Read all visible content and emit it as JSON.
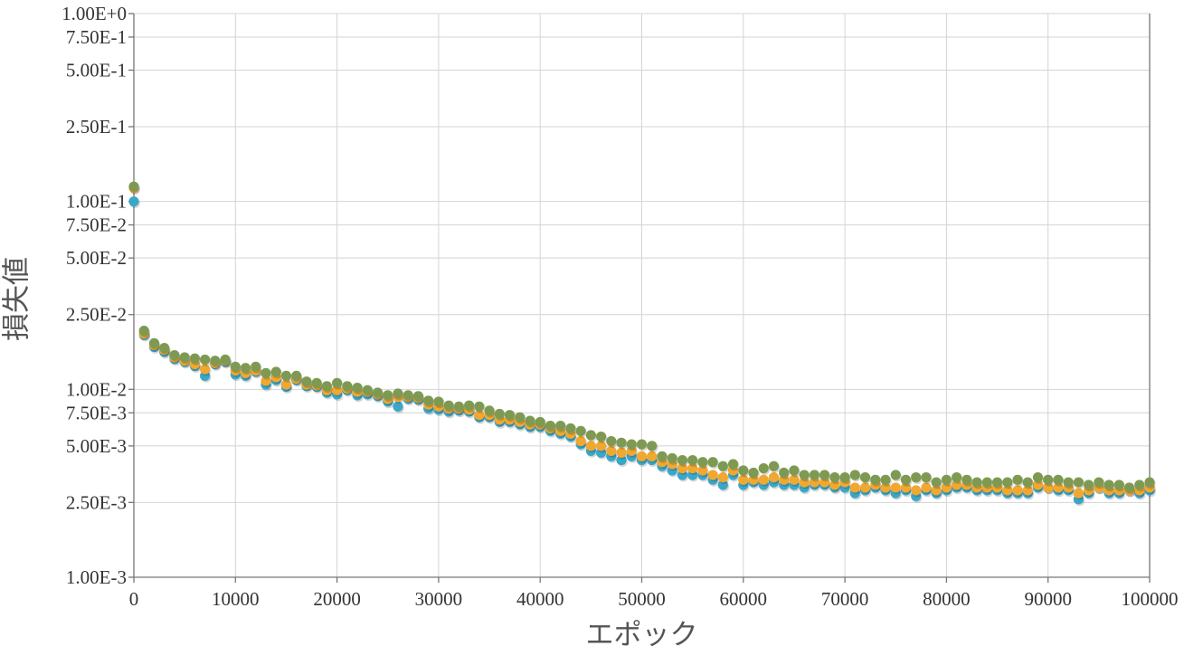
{
  "chart_data": {
    "type": "scatter",
    "title": "",
    "xlabel": "エポック",
    "ylabel": "損失値",
    "xlim": [
      0,
      100000
    ],
    "ylim": [
      0.001,
      1
    ],
    "yscale": "log",
    "grid": true,
    "legend": "none",
    "x_ticks": [
      "0",
      "10000",
      "20000",
      "30000",
      "40000",
      "50000",
      "60000",
      "70000",
      "80000",
      "90000",
      "100000"
    ],
    "y_ticks": [
      {
        "value": 1.0,
        "label": "1.00E+0"
      },
      {
        "value": 0.75,
        "label": "7.50E-1"
      },
      {
        "value": 0.5,
        "label": "5.00E-1"
      },
      {
        "value": 0.25,
        "label": "2.50E-1"
      },
      {
        "value": 0.1,
        "label": "1.00E-1"
      },
      {
        "value": 0.075,
        "label": "7.50E-2"
      },
      {
        "value": 0.05,
        "label": "5.00E-2"
      },
      {
        "value": 0.025,
        "label": "2.50E-2"
      },
      {
        "value": 0.01,
        "label": "1.00E-2"
      },
      {
        "value": 0.0075,
        "label": "7.50E-3"
      },
      {
        "value": 0.005,
        "label": "5.00E-3"
      },
      {
        "value": 0.0025,
        "label": "2.50E-3"
      },
      {
        "value": 0.001,
        "label": "1.00E-3"
      }
    ],
    "x": [
      0,
      1000,
      2000,
      3000,
      4000,
      5000,
      6000,
      7000,
      8000,
      9000,
      10000,
      11000,
      12000,
      13000,
      14000,
      15000,
      16000,
      17000,
      18000,
      19000,
      20000,
      21000,
      22000,
      23000,
      24000,
      25000,
      26000,
      27000,
      28000,
      29000,
      30000,
      31000,
      32000,
      33000,
      34000,
      35000,
      36000,
      37000,
      38000,
      39000,
      40000,
      41000,
      42000,
      43000,
      44000,
      45000,
      46000,
      47000,
      48000,
      49000,
      50000,
      51000,
      52000,
      53000,
      54000,
      55000,
      56000,
      57000,
      58000,
      59000,
      60000,
      61000,
      62000,
      63000,
      64000,
      65000,
      66000,
      67000,
      68000,
      69000,
      70000,
      71000,
      72000,
      73000,
      74000,
      75000,
      76000,
      77000,
      78000,
      79000,
      80000,
      81000,
      82000,
      83000,
      84000,
      85000,
      86000,
      87000,
      88000,
      89000,
      90000,
      91000,
      92000,
      93000,
      94000,
      95000,
      96000,
      97000,
      98000,
      99000,
      100000
    ],
    "series": [
      {
        "color": "#3aa7c9",
        "values": [
          0.1,
          0.0195,
          0.0168,
          0.0158,
          0.0145,
          0.014,
          0.0133,
          0.0118,
          0.0136,
          0.014,
          0.012,
          0.0118,
          0.0124,
          0.0106,
          0.0112,
          0.0103,
          0.0112,
          0.0104,
          0.0103,
          0.0096,
          0.0094,
          0.0099,
          0.0093,
          0.0094,
          0.0092,
          0.0086,
          0.0081,
          0.0089,
          0.0088,
          0.0079,
          0.0078,
          0.0076,
          0.0077,
          0.0076,
          0.0071,
          0.0071,
          0.0067,
          0.0067,
          0.0065,
          0.0063,
          0.0063,
          0.006,
          0.0058,
          0.0056,
          0.0051,
          0.0047,
          0.0046,
          0.0044,
          0.0042,
          0.0044,
          0.0042,
          0.0042,
          0.0039,
          0.0037,
          0.0035,
          0.0035,
          0.0035,
          0.0033,
          0.0031,
          0.0035,
          0.0031,
          0.0032,
          0.0031,
          0.0032,
          0.0031,
          0.0031,
          0.003,
          0.0031,
          0.0031,
          0.003,
          0.003,
          0.0028,
          0.0029,
          0.003,
          0.0029,
          0.0028,
          0.0029,
          0.0027,
          0.0029,
          0.0028,
          0.0029,
          0.003,
          0.003,
          0.0029,
          0.0029,
          0.0029,
          0.0028,
          0.0028,
          0.0028,
          0.003,
          0.003,
          0.0029,
          0.0029,
          0.0026,
          0.0028,
          0.003,
          0.0028,
          0.0028,
          0.0029,
          0.0028,
          0.0029
        ]
      },
      {
        "color": "#f0a830",
        "values": [
          0.118,
          0.0198,
          0.0172,
          0.0162,
          0.0148,
          0.0142,
          0.0136,
          0.0128,
          0.0138,
          0.0142,
          0.0126,
          0.0122,
          0.0126,
          0.0111,
          0.0116,
          0.0106,
          0.0114,
          0.0106,
          0.0105,
          0.0099,
          0.0099,
          0.0101,
          0.0097,
          0.0097,
          0.0094,
          0.0089,
          0.0091,
          0.0091,
          0.009,
          0.0083,
          0.0081,
          0.0079,
          0.0079,
          0.0078,
          0.0073,
          0.0073,
          0.0069,
          0.0069,
          0.0067,
          0.0065,
          0.0065,
          0.0062,
          0.006,
          0.0058,
          0.0053,
          0.005,
          0.005,
          0.0047,
          0.0046,
          0.0047,
          0.0044,
          0.0044,
          0.0041,
          0.004,
          0.0038,
          0.0038,
          0.0037,
          0.0035,
          0.0034,
          0.0037,
          0.0033,
          0.0033,
          0.0033,
          0.0034,
          0.0033,
          0.0033,
          0.0032,
          0.0032,
          0.0032,
          0.0031,
          0.0032,
          0.003,
          0.003,
          0.0031,
          0.003,
          0.003,
          0.003,
          0.0029,
          0.003,
          0.0029,
          0.003,
          0.0031,
          0.0031,
          0.003,
          0.003,
          0.003,
          0.0029,
          0.0029,
          0.0029,
          0.0031,
          0.003,
          0.003,
          0.003,
          0.0028,
          0.0029,
          0.003,
          0.0029,
          0.0029,
          0.0029,
          0.0029,
          0.003
        ]
      },
      {
        "color": "#7e9a52",
        "values": [
          0.12,
          0.0205,
          0.0176,
          0.0166,
          0.0152,
          0.0148,
          0.0146,
          0.0144,
          0.0142,
          0.0144,
          0.0132,
          0.013,
          0.0132,
          0.0122,
          0.0124,
          0.0118,
          0.0118,
          0.011,
          0.0108,
          0.0104,
          0.0108,
          0.0104,
          0.0102,
          0.0099,
          0.0096,
          0.0093,
          0.0095,
          0.0093,
          0.0092,
          0.0087,
          0.0086,
          0.0082,
          0.0081,
          0.0082,
          0.0081,
          0.0077,
          0.0074,
          0.0073,
          0.0071,
          0.0068,
          0.0067,
          0.0064,
          0.0064,
          0.0062,
          0.006,
          0.0057,
          0.0056,
          0.0053,
          0.0052,
          0.0051,
          0.0051,
          0.005,
          0.0044,
          0.0043,
          0.0042,
          0.0042,
          0.0041,
          0.0041,
          0.0039,
          0.004,
          0.0037,
          0.0036,
          0.0038,
          0.0039,
          0.0036,
          0.0037,
          0.0035,
          0.0035,
          0.0035,
          0.0034,
          0.0034,
          0.0035,
          0.0034,
          0.0033,
          0.0033,
          0.0035,
          0.0033,
          0.0034,
          0.0034,
          0.0032,
          0.0033,
          0.0034,
          0.0033,
          0.0032,
          0.0032,
          0.0032,
          0.0032,
          0.0033,
          0.0032,
          0.0034,
          0.0033,
          0.0033,
          0.0032,
          0.0032,
          0.0031,
          0.0032,
          0.0031,
          0.0031,
          0.003,
          0.0031,
          0.0032
        ]
      }
    ]
  }
}
